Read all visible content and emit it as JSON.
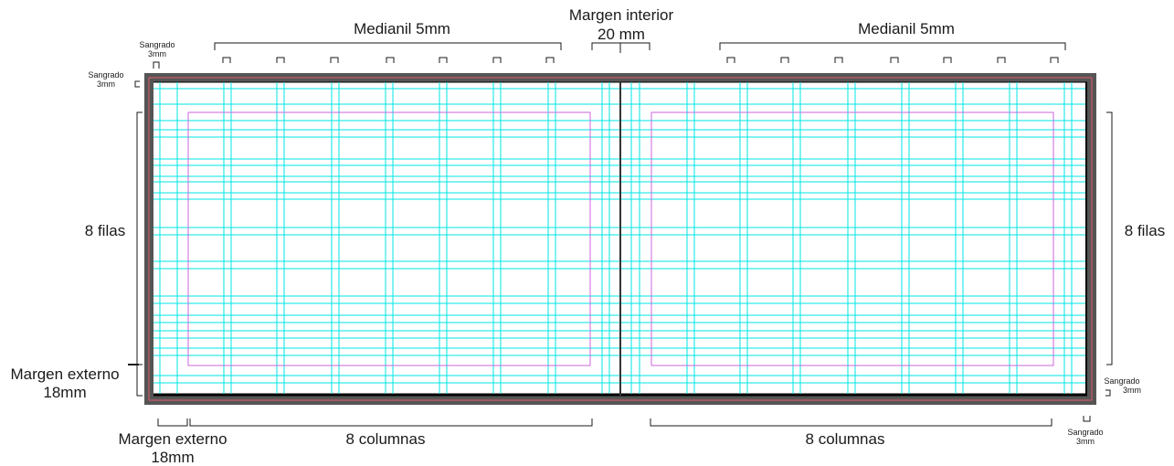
{
  "labels": {
    "medianil": "Medianil 5mm",
    "margen_interior_title": "Margen interior",
    "margen_interior_value": "20 mm",
    "sangrado": "Sangrado",
    "sangrado_value": "3mm",
    "filas": "8 filas",
    "margen_externo": "Margen externo",
    "margen_externo_value": "18mm",
    "columnas": "8 columnas"
  },
  "colors": {
    "bleed_frame": "#555555",
    "grid_guides": "#00e5e5",
    "margin_guides": "#cc66dd",
    "bleed_guide": "#e05a6a",
    "spine": "#333333",
    "annotation": "#1a1a1a"
  },
  "spread": {
    "pages": 2,
    "columns_per_page": 8,
    "rows_per_page": 8,
    "gutter_mm": 5,
    "inner_margin_mm": 20,
    "outer_margin_mm": 18,
    "bleed_mm": 3
  }
}
